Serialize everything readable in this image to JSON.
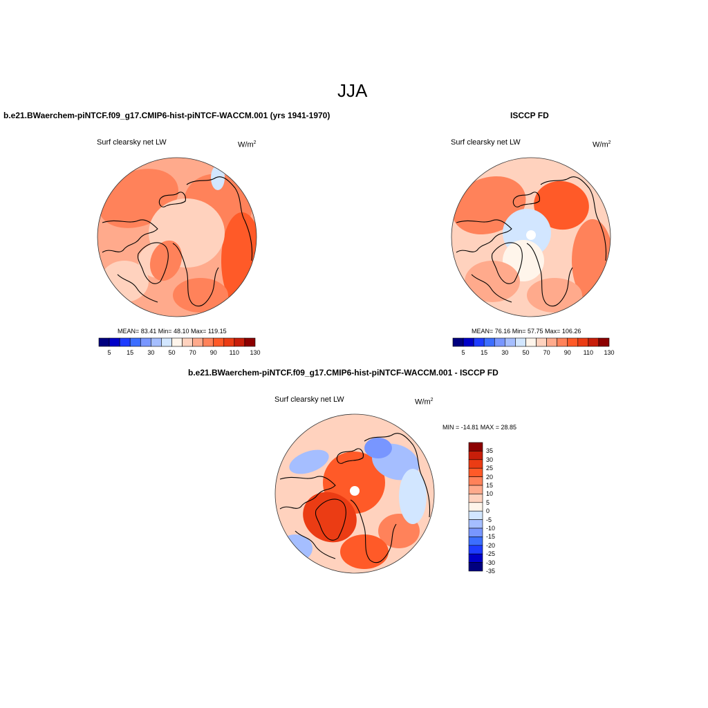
{
  "figure": {
    "season": "JJA"
  },
  "panels": [
    {
      "id": "model",
      "title": "b.e21.BWaerchem-piNTCF.f09_g17.CMIP6-hist-piNTCF-WACCM.001 (yrs 1941-1970)",
      "variable": "Surf clearsky net LW",
      "unit_base": "W/m",
      "unit_exp": "2",
      "stats_text": "MEAN=  83.41  Min=  48.10  Max= 119.15",
      "colorbar_ticks": [
        "5",
        "15",
        "30",
        "50",
        "70",
        "90",
        "110",
        "130"
      ]
    },
    {
      "id": "obs",
      "title": "ISCCP FD",
      "variable": "Surf clearsky net LW",
      "unit_base": "W/m",
      "unit_exp": "2",
      "stats_text": "MEAN=  76.16  Min=  57.75  Max= 106.26",
      "colorbar_ticks": [
        "5",
        "15",
        "30",
        "50",
        "70",
        "90",
        "110",
        "130"
      ]
    },
    {
      "id": "diff",
      "title": "b.e21.BWaerchem-piNTCF.f09_g17.CMIP6-hist-piNTCF-WACCM.001 - ISCCP FD",
      "variable": "Surf clearsky net LW",
      "unit_base": "W/m",
      "unit_exp": "2",
      "stats_text": "MIN = -14.81 MAX =  28.85",
      "colorbar_ticks": [
        "35",
        "30",
        "25",
        "20",
        "15",
        "10",
        "5",
        "0",
        "-5",
        "-10",
        "-15",
        "-20",
        "-25",
        "-30",
        "-35"
      ]
    }
  ],
  "colors": {
    "abs_scale": [
      "#00007f",
      "#0000c8",
      "#1e3cff",
      "#3c6eff",
      "#7896ff",
      "#a5beff",
      "#d2e6ff",
      "#fff5eb",
      "#ffd2be",
      "#ffaa8c",
      "#ff825a",
      "#ff5a28",
      "#eb3c14",
      "#c81e0a",
      "#8c0000"
    ],
    "diff_scale": [
      "#8c0000",
      "#c81e0a",
      "#eb3c14",
      "#ff5a28",
      "#ff825a",
      "#ffaa8c",
      "#ffd2be",
      "#fff5eb",
      "#d2e6ff",
      "#a5beff",
      "#7896ff",
      "#3c6eff",
      "#1e3cff",
      "#0000c8",
      "#00007f"
    ],
    "coast": "#000000",
    "disk_border": "#333333"
  }
}
